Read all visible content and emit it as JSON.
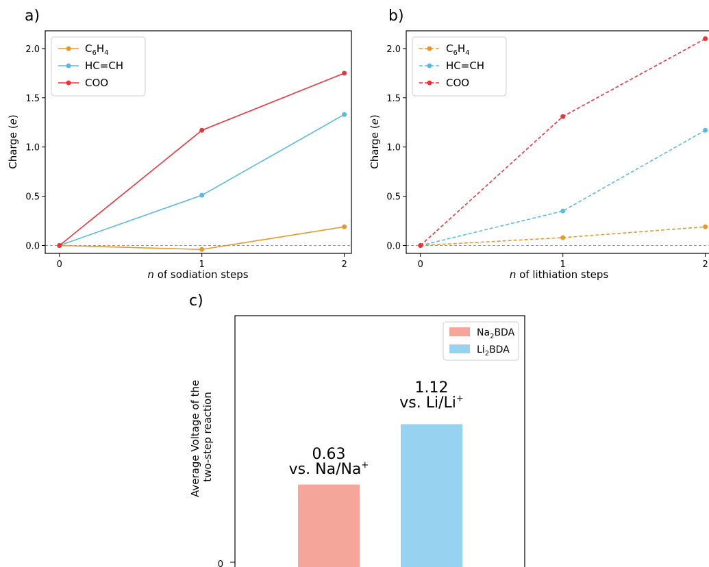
{
  "chart_data": [
    {
      "type": "line",
      "panel_label": "a)",
      "xlabel_italic": "n",
      "xlabel": " of sodiation steps",
      "ylabel": "Charge (",
      "ylabel_unit": "e",
      "ylabel_close": ")",
      "x": [
        0,
        1,
        2
      ],
      "xlim": [
        -0.1,
        2.05
      ],
      "ylim": [
        -0.08,
        2.18
      ],
      "xticks": [
        0,
        1,
        2
      ],
      "yticks": [
        0.0,
        0.5,
        1.0,
        1.5,
        2.0
      ],
      "ytick_labels": [
        "0.0",
        "0.5",
        "1.0",
        "1.5",
        "2.0"
      ],
      "line_style": "solid",
      "reference_line_y": 0,
      "legend_position": "top-left",
      "series": [
        {
          "label_base": "C",
          "label_sub1": "6",
          "label_mid": "H",
          "label_sub2": "4",
          "color": "#e8982b",
          "values": [
            0.0,
            -0.04,
            0.19
          ]
        },
        {
          "label": "HC=CH",
          "color": "#5bb8e2",
          "values": [
            0.0,
            0.51,
            1.33
          ]
        },
        {
          "label": "COO",
          "color": "#e8343a",
          "values": [
            0.0,
            1.17,
            1.75
          ]
        }
      ]
    },
    {
      "type": "line",
      "panel_label": "b)",
      "xlabel_italic": "n",
      "xlabel": " of lithiation steps",
      "ylabel": "Charge (",
      "ylabel_unit": "e",
      "ylabel_close": ")",
      "x": [
        0,
        1,
        2
      ],
      "xlim": [
        -0.1,
        2.05
      ],
      "ylim": [
        -0.08,
        2.18
      ],
      "xticks": [
        0,
        1,
        2
      ],
      "yticks": [
        0.0,
        0.5,
        1.0,
        1.5,
        2.0
      ],
      "ytick_labels": [
        "0.0",
        "0.5",
        "1.0",
        "1.5",
        "2.0"
      ],
      "line_style": "dashed",
      "reference_line_y": 0,
      "legend_position": "top-left",
      "series": [
        {
          "label_base": "C",
          "label_sub1": "6",
          "label_mid": "H",
          "label_sub2": "4",
          "color": "#e8982b",
          "values": [
            0.0,
            0.08,
            0.19
          ]
        },
        {
          "label": "HC=CH",
          "color": "#5bb8e2",
          "values": [
            0.0,
            0.35,
            1.17
          ]
        },
        {
          "label": "COO",
          "color": "#e8343a",
          "values": [
            0.0,
            1.31,
            2.1
          ]
        }
      ]
    },
    {
      "type": "bar",
      "panel_label": "c)",
      "ylabel_line1": "Average Voltage of the",
      "ylabel_line2": "two-step reaction",
      "ytick_labels": [
        "0"
      ],
      "ylim": [
        0,
        2.0
      ],
      "legend_position": "top-right",
      "bars": [
        {
          "legend_base": "Na",
          "legend_sub": "2",
          "legend_rest": "BDA",
          "value": 0.63,
          "value_label": "0.63",
          "ref_label_base": "vs. Na/Na",
          "ref_label_sup": "+",
          "color": "#f4a69a"
        },
        {
          "legend_base": "Li",
          "legend_sub": "2",
          "legend_rest": "BDA",
          "value": 1.12,
          "value_label": "1.12",
          "ref_label_base": "vs. Li/Li",
          "ref_label_sup": "+",
          "color": "#97d2f1"
        }
      ]
    }
  ]
}
